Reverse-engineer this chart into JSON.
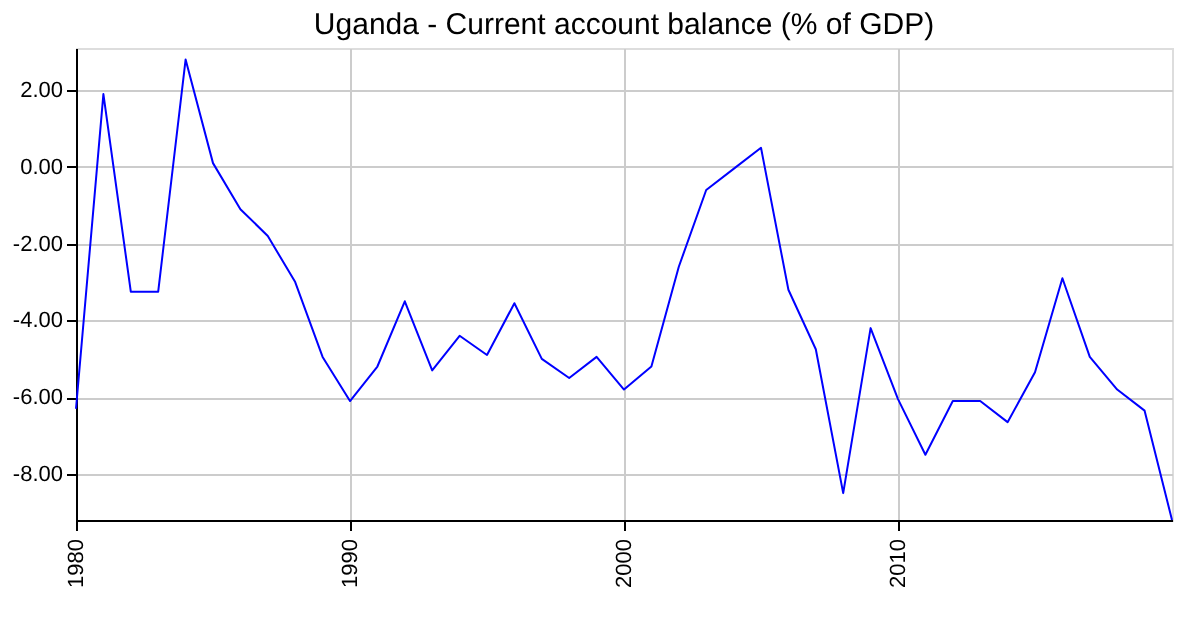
{
  "chart_data": {
    "type": "line",
    "title": "Uganda - Current account balance (% of GDP)",
    "x": [
      1980,
      1981,
      1982,
      1983,
      1984,
      1985,
      1986,
      1987,
      1988,
      1989,
      1990,
      1991,
      1992,
      1993,
      1994,
      1995,
      1996,
      1997,
      1998,
      1999,
      2000,
      2001,
      2002,
      2003,
      2004,
      2005,
      2006,
      2007,
      2008,
      2009,
      2010,
      2011,
      2012,
      2013,
      2014,
      2015,
      2016,
      2017,
      2018,
      2019,
      2020
    ],
    "series": [
      {
        "color": "#0000ff",
        "values": [
          -6.3,
          1.9,
          -3.25,
          -3.25,
          2.8,
          0.1,
          -1.1,
          -1.8,
          -3.0,
          -4.95,
          -6.1,
          -5.2,
          -3.5,
          -5.3,
          -4.4,
          -4.9,
          -3.55,
          -5.0,
          -5.5,
          -4.95,
          -5.8,
          -5.2,
          -2.6,
          -0.6,
          -0.05,
          0.5,
          -3.2,
          -4.75,
          -8.5,
          -4.2,
          -6.05,
          -7.5,
          -6.1,
          -6.1,
          -6.65,
          -5.35,
          -2.9,
          -4.95,
          -5.8,
          -6.35,
          -9.2
        ]
      }
    ],
    "xlim": [
      1980,
      2020
    ],
    "xticks": [
      1980,
      1990,
      2000,
      2010
    ],
    "ylim": [
      -9.2,
      3.1
    ],
    "yticks": [
      {
        "value": -8,
        "label": "-8.00"
      },
      {
        "value": -6,
        "label": "-6.00"
      },
      {
        "value": -4,
        "label": "-4.00"
      },
      {
        "value": -2,
        "label": "-2.00"
      },
      {
        "value": 0,
        "label": "0.00"
      },
      {
        "value": 2,
        "label": "2.00"
      }
    ],
    "grid": true,
    "legend": false,
    "marker": "none",
    "line_style": "solid"
  }
}
